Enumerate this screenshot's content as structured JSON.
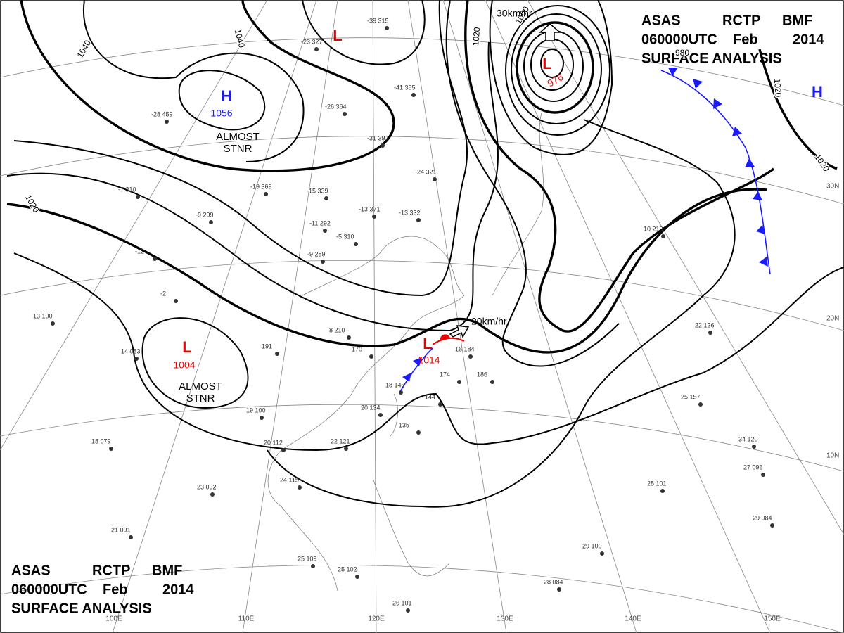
{
  "header": {
    "line1": [
      "ASAS",
      "RCTP",
      "BMF"
    ],
    "line2": [
      "060000UTC",
      "Feb",
      "2014"
    ],
    "line3": "SURFACE ANALYSIS"
  },
  "centers": [
    {
      "type": "H",
      "pressure": "1056"
    },
    {
      "type": "L",
      "pressure": "976"
    },
    {
      "type": "L",
      "pressure": "1004"
    },
    {
      "type": "L",
      "pressure": "1014"
    },
    {
      "type": "L"
    },
    {
      "type": "H"
    }
  ],
  "isobar_labels": [
    "1040",
    "1040",
    "1020",
    "1020",
    "1000",
    "980",
    "1020",
    "1020"
  ],
  "motions": [
    "30km/hr",
    "20km/hr"
  ],
  "notes": [
    [
      "ALMOST",
      "STNR"
    ],
    [
      "ALMOST",
      "STNR"
    ]
  ],
  "longitudes": [
    "100E",
    "110E",
    "120E",
    "130E",
    "140E",
    "150E"
  ],
  "latitudes": [
    "30N",
    "20N",
    "10N"
  ],
  "stations": [
    "-39 315",
    "-23 327",
    "-41 385",
    "-28 459",
    "-26 364",
    "-31 397",
    "-24 321",
    "-19 369",
    "-15 339",
    "-13 371",
    "-13 332",
    "-11 292",
    "-5 310",
    "-9 289",
    "-7 310",
    "-9 299",
    "-12",
    "-2",
    "13 100",
    "14 083",
    "18 079",
    "19 100",
    "20 112",
    "22 121",
    "24 115",
    "23 092",
    "21 091",
    "25 109",
    "25 102",
    "26 101",
    "8 210",
    "191",
    "170",
    "18 145",
    "20 134",
    "144",
    "135",
    "16 184",
    "174",
    "186",
    "10 219",
    "22 126",
    "25 157",
    "34 120",
    "27 096",
    "28 101",
    "29 100",
    "28 084",
    "29 084"
  ]
}
